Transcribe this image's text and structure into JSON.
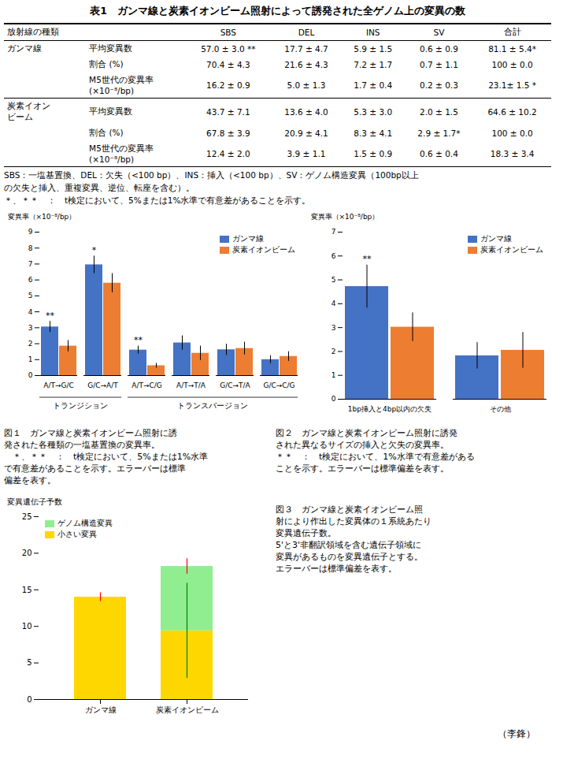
{
  "chart_data": [
    {
      "type": "table",
      "title": "表1　ガンマ線と炭素イオンビーム照射によって誘発された全ゲノム上の変異の数",
      "columns": [
        "放射線の種類",
        null,
        "SBS",
        "DEL",
        "INS",
        "SV",
        "合計"
      ],
      "rows": [
        [
          "ガンマ線",
          "平均変異数",
          "57.0 ± 3.0 **",
          "17.7 ± 4.7",
          "5.9 ± 1.5",
          "0.6 ± 0.9",
          "81.1 ± 5.4*"
        ],
        [
          null,
          "割合 (%)",
          "70.4 ± 4.3",
          "21.6 ± 4.3",
          "7.2 ± 1.7",
          "0.7 ± 1.1",
          "100 ± 0.0"
        ],
        [
          null,
          "M5世代の変異率\n(×10⁻⁸/bp)",
          "16.2 ± 0.9",
          "5.0 ± 1.3",
          "1.7 ± 0.4",
          "0.2 ± 0.3",
          "23.1± 1.5 *"
        ],
        [
          "炭素イオン\nビーム",
          "平均変異数",
          "43.7 ± 7.1",
          "13.6 ± 4.0",
          "5.3 ± 3.0",
          "2.0 ± 1.5",
          "64.6 ± 10.2"
        ],
        [
          null,
          "割合 (%)",
          "67.8 ± 3.9",
          "20.9 ± 4.1",
          "8.3 ± 4.1",
          "2.9 ± 1.7*",
          "100 ± 0.0"
        ],
        [
          null,
          "M5世代の変異率\n(×10⁻⁸/bp)",
          "12.4 ± 2.0",
          "3.9 ± 1.1",
          "1.5 ± 0.9",
          "0.6 ± 0.4",
          "18.3 ± 3.4"
        ]
      ],
      "annotations": [
        "SBS：一塩基置換、DEL：欠失（<100 bp）、INS：挿入（<100 bp）、SV：ゲノム構造変異（100bp以上",
        "の欠失と挿入、重複変異、逆位、転座を含む）。",
        "＊、＊＊　：　t検定において、5%または1%水準で有意差があることを示す。"
      ]
    },
    {
      "type": "bar",
      "categories": [
        "A/T→G/C",
        "G/C→A/T",
        "A/T→C/G",
        "A/T→T/A",
        "G/C→T/A",
        "G/C→C/G"
      ],
      "series": [
        {
          "name": "ガンマ線",
          "color": "#4472C4",
          "values": [
            3.05,
            6.95,
            1.6,
            2.05,
            1.62,
            1.0
          ],
          "errors": [
            0.35,
            0.55,
            0.25,
            0.45,
            0.35,
            0.25
          ]
        },
        {
          "name": "炭素イオンビーム",
          "color": "#ED7D31",
          "values": [
            1.85,
            5.8,
            0.62,
            1.4,
            1.7,
            1.2
          ],
          "errors": [
            0.35,
            0.6,
            0.15,
            0.45,
            0.4,
            0.3
          ]
        }
      ],
      "significance": [
        "**",
        "*",
        "**",
        null,
        null,
        null
      ],
      "annotations": [
        {
          "text": "トランジション",
          "categories": [
            "A/T→G/C",
            "G/C→A/T"
          ]
        },
        {
          "text": "トランスバージョン",
          "categories": [
            "A/T→C/G",
            "A/T→T/A",
            "G/C→T/A",
            "G/C→C/G"
          ]
        }
      ],
      "ylabel": "変異率（×10⁻⁸/bp）",
      "ylim": [
        0,
        9
      ],
      "yticks": [
        0,
        1,
        2,
        3,
        4,
        5,
        6,
        7,
        8,
        9
      ],
      "legend": "upper right",
      "caption": "図１　ガンマ線と炭素イオンビーム照射に誘\n発された各種類の一塩基置換の変異率。\n　＊、＊＊　：　t検定において、5%または1%水準\nで有意差があることを示す。エラーバーは標準\n偏差を表す。"
    },
    {
      "type": "bar",
      "categories": [
        "1bp挿入と4bp以内の欠失",
        "その他"
      ],
      "series": [
        {
          "name": "ガンマ線",
          "color": "#4472C4",
          "values": [
            4.72,
            1.82
          ],
          "errors": [
            0.9,
            0.55
          ]
        },
        {
          "name": "炭素イオンビーム",
          "color": "#ED7D31",
          "values": [
            3.02,
            2.05
          ],
          "errors": [
            0.6,
            0.75
          ]
        }
      ],
      "significance": [
        "**",
        null
      ],
      "ylabel": "変異率（×10⁻⁸/bp）",
      "ylim": [
        0,
        7
      ],
      "yticks": [
        0,
        1,
        2,
        3,
        4,
        5,
        6,
        7
      ],
      "legend": "upper right",
      "caption": "図２　ガンマ線と炭素イオンビーム照射に誘発\nされた異なるサイズの挿入と欠失の変異率。\n＊＊　：　t検定において、1%水準で有意差がある\nことを示す。エラーバーは標準偏差を表す。"
    },
    {
      "type": "bar",
      "stacked": true,
      "categories": [
        "ガンマ線",
        "炭素イオンビーム"
      ],
      "series": [
        {
          "name": "小さい変異",
          "color": "#FFD700",
          "values": [
            14.0,
            9.4
          ]
        },
        {
          "name": "ゲノム構造変異",
          "color": "#90EE90",
          "values": [
            0.0,
            8.8
          ]
        }
      ],
      "error_bars": [
        {
          "color": "red",
          "values": [
            14.0,
            18.2
          ],
          "errors": [
            0.6,
            1.05
          ]
        },
        {
          "color": "green",
          "values": [
            null,
            9.4
          ],
          "errors": [
            null,
            6.5
          ]
        }
      ],
      "ylabel": "変異遺伝子予数",
      "ylim": [
        0,
        25
      ],
      "yticks": [
        0,
        5,
        10,
        15,
        20,
        25
      ],
      "legend": "upper left",
      "caption": "図３　ガンマ線と炭素イオンビーム照\n射により作出した変異体の１系統あたり\n変異遺伝子数。\n5'と3'非翻訳領域を含む遺伝子領域に\n変異があるものを変異遺伝子とする。\nエラーバーは標準偏差を表す。"
    }
  ],
  "author": "（李鋒）"
}
